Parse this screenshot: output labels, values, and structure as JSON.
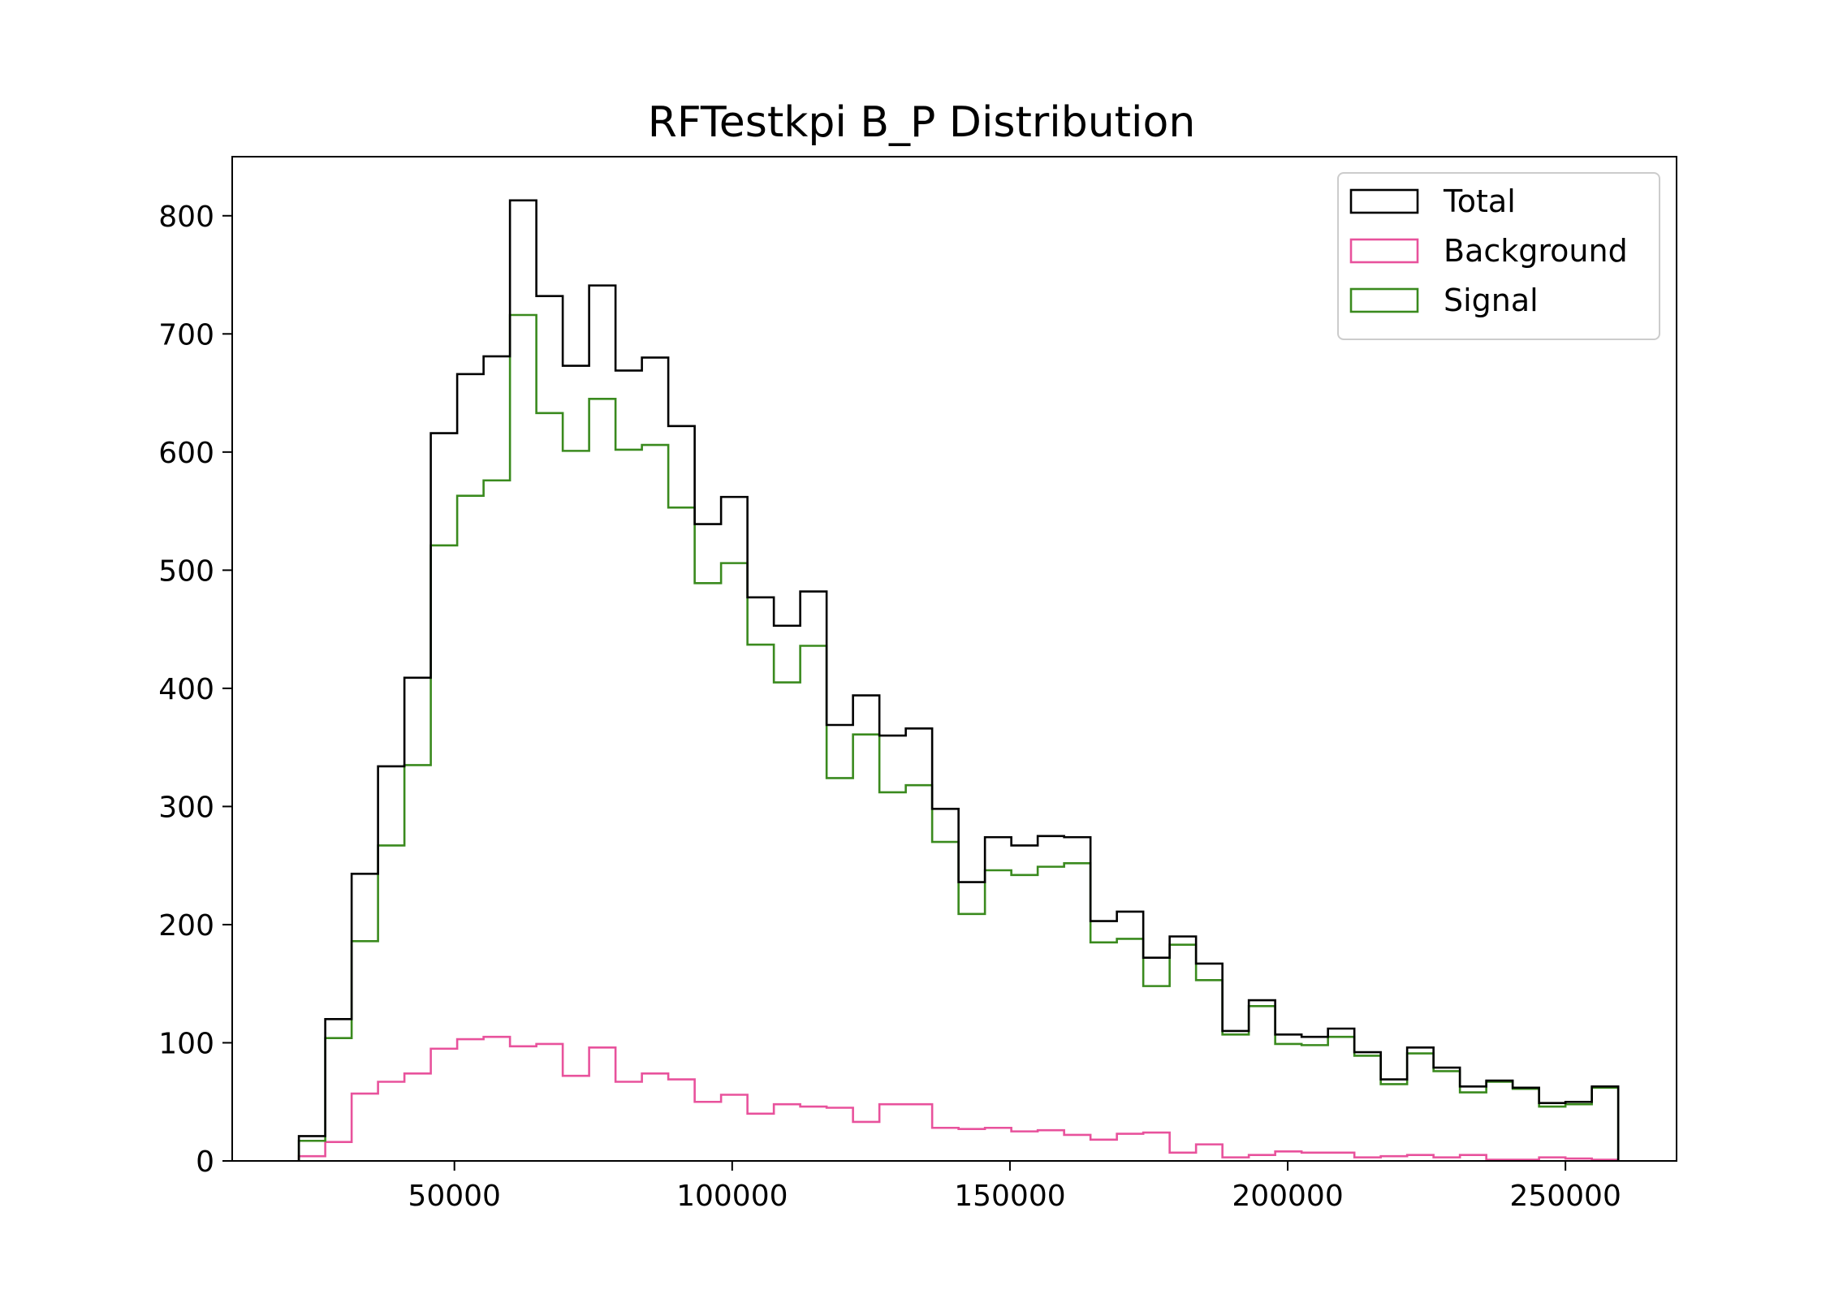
{
  "chart_data": {
    "type": "histogram",
    "title": "RFTestkpi B_P Distribution",
    "xlabel": "",
    "ylabel": "",
    "xlim": [
      10000,
      270000
    ],
    "ylim": [
      0,
      850
    ],
    "x_ticks": [
      50000,
      100000,
      150000,
      200000,
      250000
    ],
    "y_ticks": [
      0,
      100,
      200,
      300,
      400,
      500,
      600,
      700,
      800
    ],
    "grid": false,
    "legend_position": "top-right",
    "bin_edges": [
      22000,
      26750,
      31500,
      36250,
      41000,
      45750,
      50500,
      55250,
      60000,
      64750,
      69500,
      74250,
      79000,
      83750,
      88500,
      93250,
      98000,
      102750,
      107500,
      112250,
      117000,
      121750,
      126500,
      131250,
      136000,
      140750,
      145500,
      150250,
      155000,
      159750,
      164500,
      169250,
      174000,
      178750,
      183500,
      188250,
      193000,
      197750,
      202500,
      207250,
      212000,
      216750,
      221500,
      226250,
      231000,
      235750,
      240500,
      245250,
      250000,
      254750,
      259500
    ],
    "series": [
      {
        "name": "Total",
        "color": "#000000",
        "values": [
          21,
          120,
          243,
          334,
          409,
          616,
          666,
          681,
          813,
          732,
          673,
          741,
          669,
          680,
          622,
          539,
          562,
          477,
          453,
          482,
          369,
          394,
          360,
          366,
          298,
          236,
          274,
          267,
          275,
          274,
          203,
          211,
          172,
          190,
          167,
          110,
          136,
          107,
          105,
          112,
          92,
          69,
          96,
          79,
          63,
          68,
          62,
          49,
          50,
          63
        ]
      },
      {
        "name": "Background",
        "color": "#e8529c",
        "values": [
          4,
          16,
          57,
          67,
          74,
          95,
          103,
          105,
          97,
          99,
          72,
          96,
          67,
          74,
          69,
          50,
          56,
          40,
          48,
          46,
          45,
          33,
          48,
          48,
          28,
          27,
          28,
          25,
          26,
          22,
          18,
          23,
          24,
          7,
          14,
          3,
          5,
          8,
          7,
          7,
          3,
          4,
          5,
          3,
          5,
          1,
          1,
          3,
          2,
          1
        ]
      },
      {
        "name": "Signal",
        "color": "#3a8a1e",
        "values": [
          17,
          104,
          186,
          267,
          335,
          521,
          563,
          576,
          716,
          633,
          601,
          645,
          602,
          606,
          553,
          489,
          506,
          437,
          405,
          436,
          324,
          361,
          312,
          318,
          270,
          209,
          246,
          242,
          249,
          252,
          185,
          188,
          148,
          183,
          153,
          107,
          131,
          99,
          98,
          105,
          89,
          65,
          91,
          76,
          58,
          67,
          61,
          46,
          48,
          62
        ]
      }
    ]
  }
}
